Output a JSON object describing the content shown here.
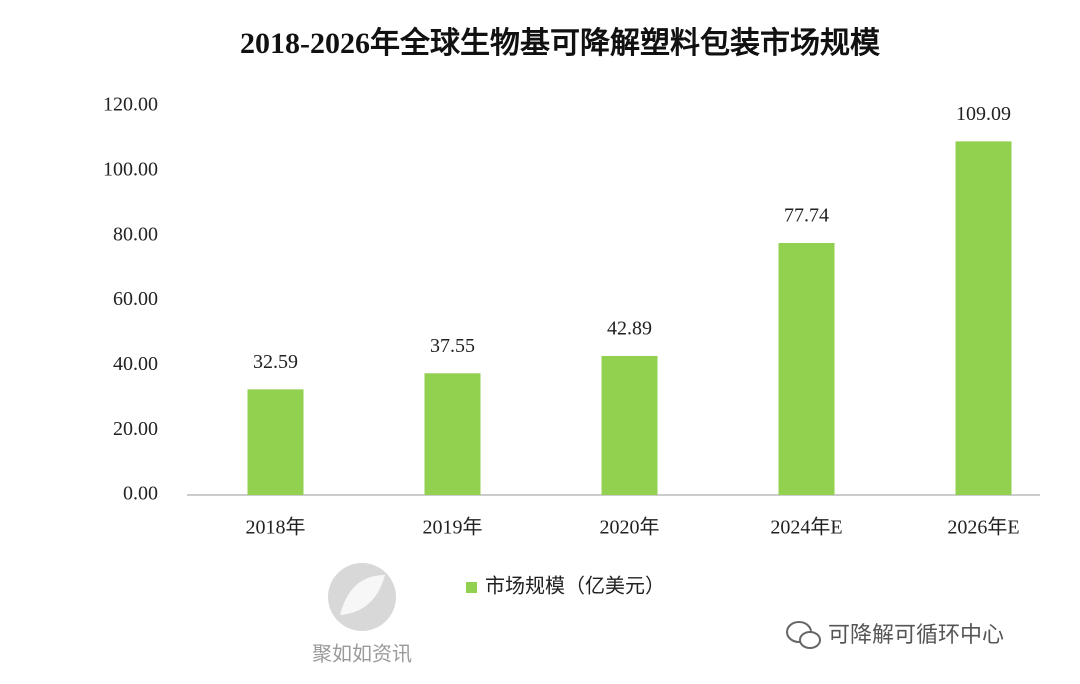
{
  "chart_data": {
    "type": "bar",
    "title": "2018-2026年全球生物基可降解塑料包装市场规模",
    "categories": [
      "2018年",
      "2019年",
      "2020年",
      "2024年E",
      "2026年E"
    ],
    "series": [
      {
        "name": "市场规模（亿美元）",
        "color": "#92d050",
        "values": [
          32.59,
          37.55,
          42.89,
          77.74,
          109.09
        ]
      }
    ],
    "ylim": [
      0,
      120
    ],
    "yticks": [
      {
        "value": 0,
        "label": "0.00"
      },
      {
        "value": 20,
        "label": "20.00"
      },
      {
        "value": 40,
        "label": "40.00"
      },
      {
        "value": 60,
        "label": "60.00"
      },
      {
        "value": 80,
        "label": "80.00"
      },
      {
        "value": 100,
        "label": "100.00"
      },
      {
        "value": 120,
        "label": "120.00"
      }
    ],
    "grid": false,
    "legend": "bottom",
    "watermarks": [
      "聚如如资讯",
      "可降解可循环中心"
    ]
  }
}
